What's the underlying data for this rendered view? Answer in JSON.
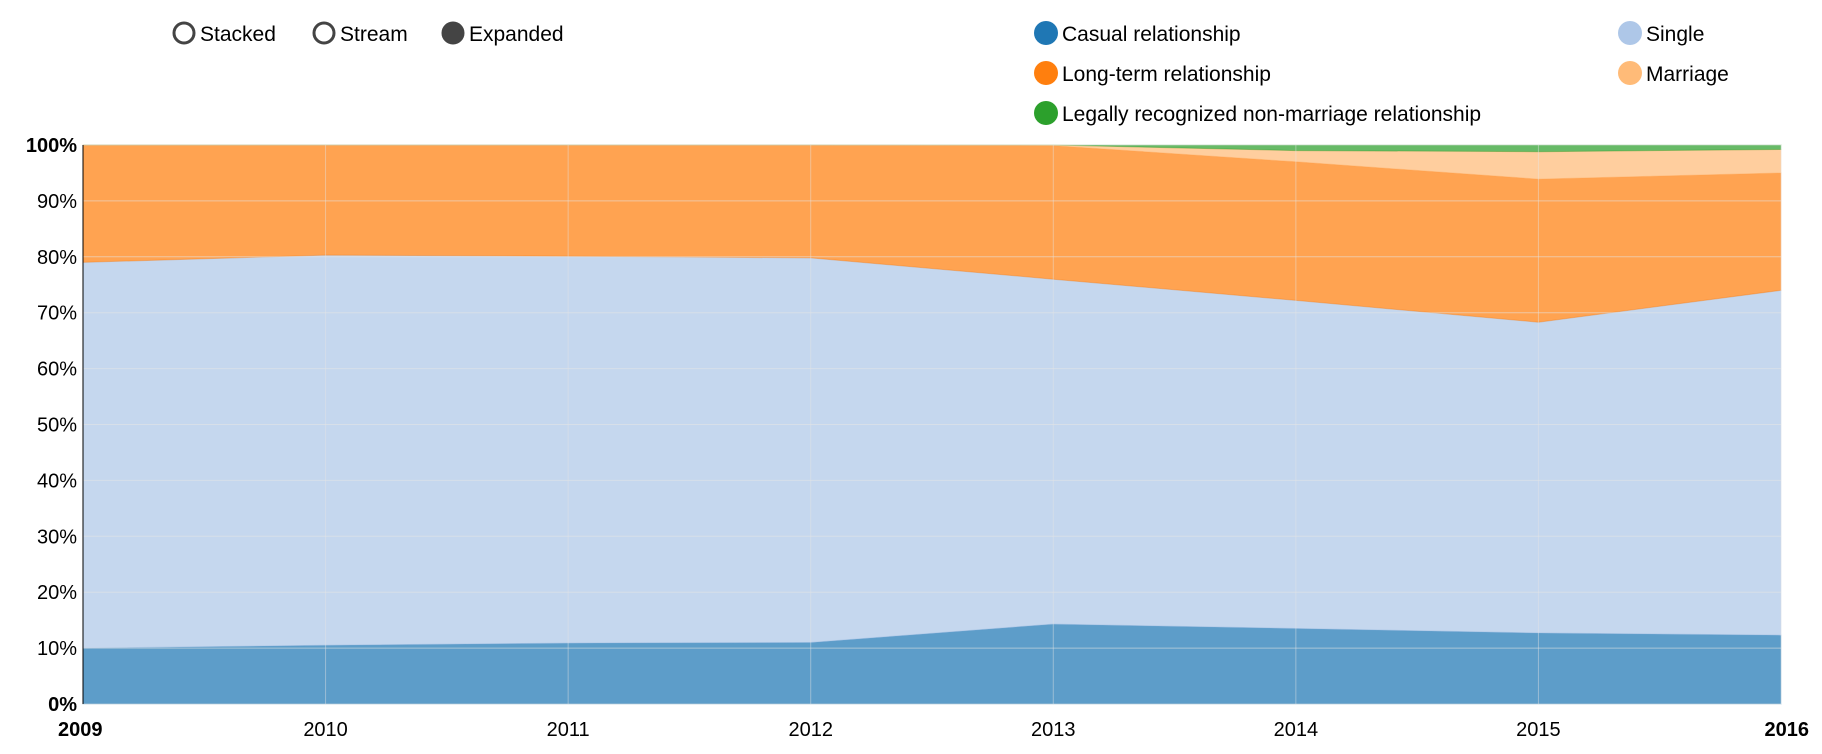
{
  "controls": [
    {
      "label": "Stacked",
      "selected": false
    },
    {
      "label": "Stream",
      "selected": false
    },
    {
      "label": "Expanded",
      "selected": true
    }
  ],
  "legend": [
    {
      "label": "Casual relationship",
      "color": "#1f77b4"
    },
    {
      "label": "Long-term relationship",
      "color": "#ff7f0e"
    },
    {
      "label": "Legally recognized non-marriage relationship",
      "color": "#2ca02c"
    },
    {
      "label": "Single",
      "color": "#aec7e8"
    },
    {
      "label": "Marriage",
      "color": "#ffbb78"
    }
  ],
  "chart_data": {
    "type": "area",
    "mode": "expanded",
    "x": [
      2009,
      2010,
      2011,
      2012,
      2013,
      2014,
      2015,
      2016
    ],
    "y_ticks": [
      "0%",
      "10%",
      "20%",
      "30%",
      "40%",
      "50%",
      "60%",
      "70%",
      "80%",
      "90%",
      "100%"
    ],
    "x_ticks": [
      "2009",
      "2010",
      "2011",
      "2012",
      "2013",
      "2014",
      "2015",
      "2016"
    ],
    "ylim": [
      0,
      100
    ],
    "series": [
      {
        "name": "Casual relationship",
        "color": "#1f77b4",
        "values": [
          10.0,
          10.5,
          10.9,
          11.0,
          14.3,
          13.5,
          12.7,
          12.3
        ]
      },
      {
        "name": "Single",
        "color": "#aec7e8",
        "values": [
          69.0,
          69.8,
          69.2,
          68.8,
          61.7,
          58.7,
          55.6,
          61.7
        ]
      },
      {
        "name": "Long-term relationship",
        "color": "#ff7f0e",
        "values": [
          21.0,
          19.7,
          19.9,
          20.2,
          23.9,
          24.8,
          25.6,
          21.0
        ]
      },
      {
        "name": "Marriage",
        "color": "#ffbb78",
        "values": [
          0.0,
          0.0,
          0.0,
          0.0,
          0.1,
          2.0,
          4.9,
          4.2
        ]
      },
      {
        "name": "Legally recognized non-marriage relationship",
        "color": "#2ca02c",
        "values": [
          0.0,
          0.0,
          0.0,
          0.0,
          0.0,
          1.0,
          1.2,
          0.8
        ]
      }
    ]
  }
}
